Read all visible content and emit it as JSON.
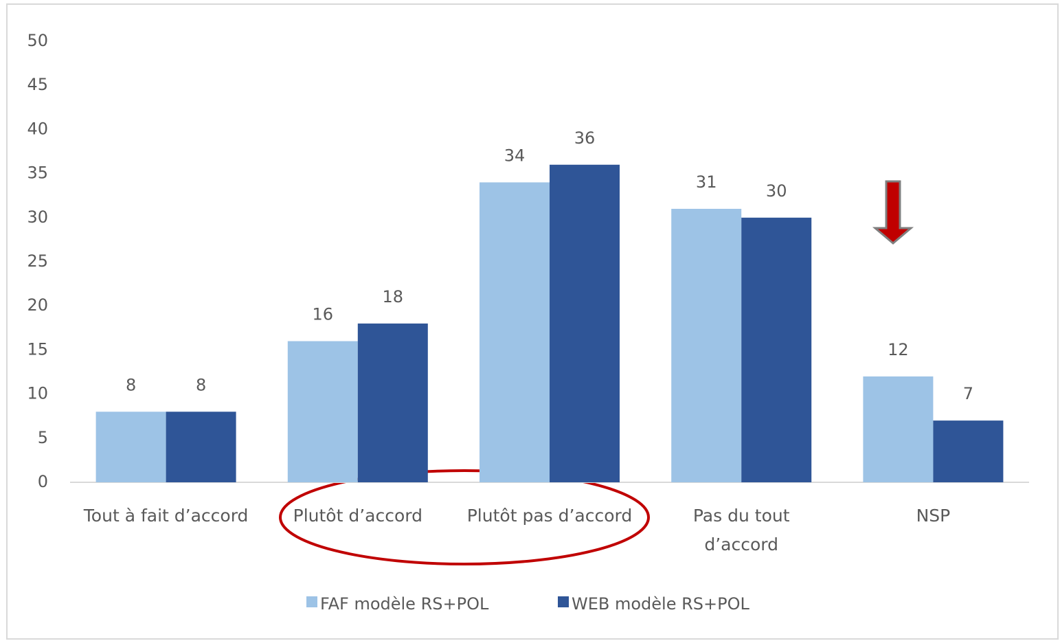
{
  "chart_data": {
    "type": "bar",
    "categories": [
      "Tout à fait d’accord",
      "Plutôt d’accord",
      "Plutôt pas d’accord",
      "Pas du tout\nd’accord",
      "NSP"
    ],
    "series": [
      {
        "name": "FAF modèle RS+POL",
        "color": "#9dc3e6",
        "values": [
          8,
          16,
          34,
          31,
          12
        ]
      },
      {
        "name": "WEB modèle RS+POL",
        "color": "#2f5597",
        "values": [
          8,
          18,
          36,
          30,
          7
        ]
      }
    ],
    "ylim": [
      0,
      50
    ],
    "yticks": [
      0,
      5,
      10,
      15,
      20,
      25,
      30,
      35,
      40,
      45,
      50
    ],
    "grid": false
  }
}
